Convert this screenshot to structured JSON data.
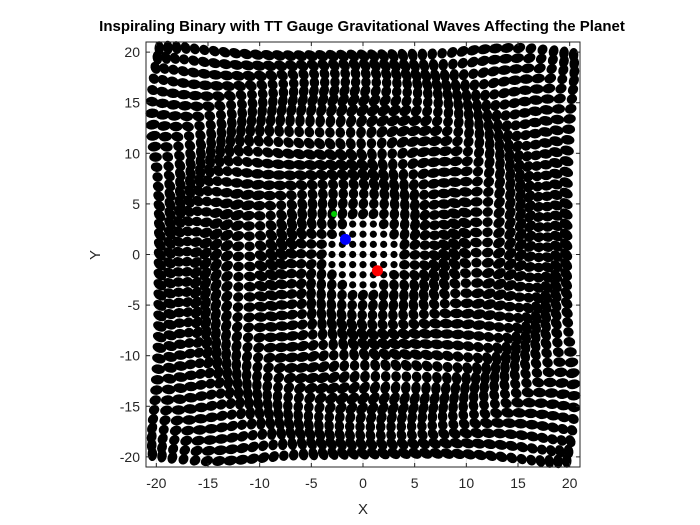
{
  "chart_data": {
    "type": "scatter",
    "title": "Inspiraling Binary with TT Gauge Gravitational Waves Affecting the Planet",
    "xlabel": "X",
    "ylabel": "Y",
    "xlim": [
      -21,
      21
    ],
    "ylim": [
      -21,
      21
    ],
    "xticks": [
      -20,
      -15,
      -10,
      -5,
      0,
      5,
      10,
      15,
      20
    ],
    "yticks": [
      -20,
      -15,
      -10,
      -5,
      0,
      5,
      10,
      15,
      20
    ],
    "grid": true,
    "axis_equal": true,
    "lattice": {
      "range": [
        -20,
        20
      ],
      "spacing": 1,
      "color": "#000000",
      "description_of_effect": "square lattice of test particles displaced by a rotating quadrupolar wave pattern"
    },
    "highlighted_points": [
      {
        "x": -1.7,
        "y": 1.5,
        "color": "#0000ff"
      },
      {
        "x": 1.4,
        "y": -1.6,
        "color": "#ff0000"
      },
      {
        "x": -2.8,
        "y": 4.0,
        "color": "#00cc00"
      }
    ]
  }
}
